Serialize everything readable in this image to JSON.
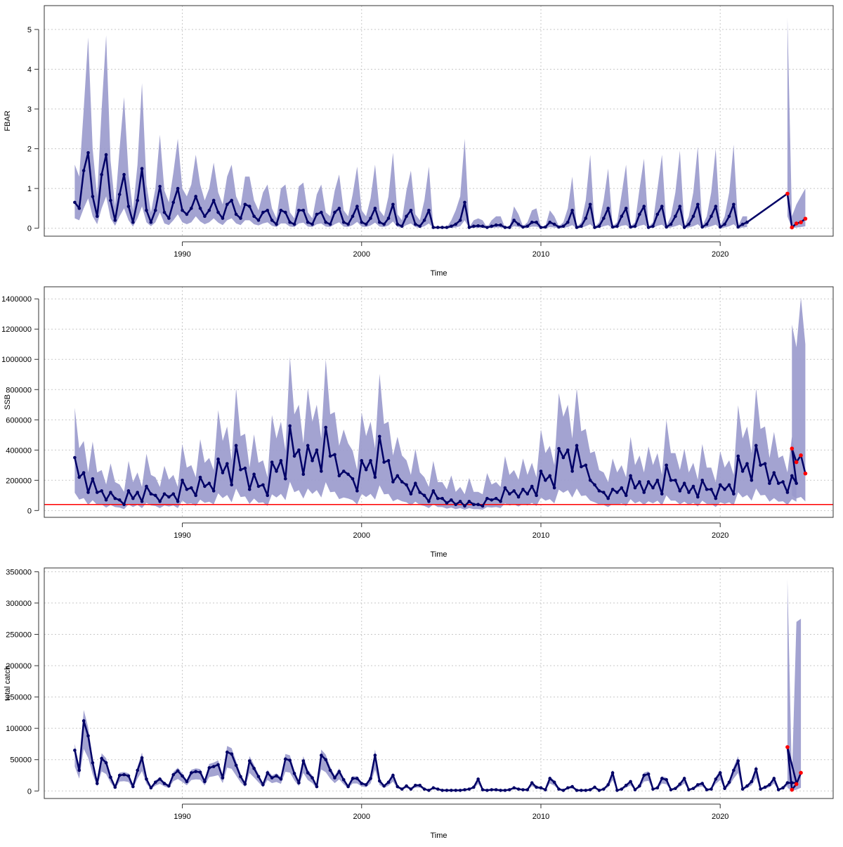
{
  "chart_data": [
    {
      "type": "line",
      "ylabel": "FBAR",
      "xlabel": "Time",
      "xlim": [
        1982.3,
        2026.3
      ],
      "ylim": [
        -0.2,
        5.6
      ],
      "x_ticks": [
        1990,
        2000,
        2010,
        2020
      ],
      "y_ticks": [
        0,
        1,
        2,
        3,
        4,
        5
      ],
      "grid": true,
      "colors": {
        "line": "#000066",
        "band": "#9999cc",
        "forecast_points": "#ff0000"
      },
      "series": [
        {
          "x_start": 1984.0,
          "x_step": 0.25,
          "values": [
            0.65,
            0.5,
            1.45,
            1.9,
            0.8,
            0.3,
            1.35,
            1.85,
            0.7,
            0.2,
            0.85,
            1.35,
            0.55,
            0.15,
            0.7,
            1.5,
            0.45,
            0.15,
            0.45,
            1.05,
            0.4,
            0.25,
            0.65,
            1.0,
            0.45,
            0.35,
            0.5,
            0.8,
            0.5,
            0.3,
            0.45,
            0.7,
            0.4,
            0.25,
            0.6,
            0.7,
            0.35,
            0.25,
            0.6,
            0.55,
            0.3,
            0.2,
            0.4,
            0.45,
            0.2,
            0.1,
            0.45,
            0.4,
            0.15,
            0.1,
            0.45,
            0.45,
            0.15,
            0.1,
            0.35,
            0.4,
            0.15,
            0.1,
            0.4,
            0.5,
            0.15,
            0.1,
            0.3,
            0.55,
            0.15,
            0.1,
            0.25,
            0.5,
            0.15,
            0.1,
            0.25,
            0.6,
            0.1,
            0.05,
            0.3,
            0.45,
            0.1,
            0.05,
            0.2,
            0.45,
            0.02,
            0.02,
            0.02,
            0.02,
            0.05,
            0.1,
            0.2,
            0.65,
            0.02,
            0.05,
            0.06,
            0.05,
            0.02,
            0.05,
            0.08,
            0.08,
            0.02,
            0.02,
            0.2,
            0.1,
            0.03,
            0.05,
            0.15,
            0.15,
            0.02,
            0.03,
            0.15,
            0.1,
            0.03,
            0.05,
            0.15,
            0.45,
            0.02,
            0.05,
            0.25,
            0.6,
            0.02,
            0.05,
            0.25,
            0.5,
            0.03,
            0.05,
            0.3,
            0.5,
            0.03,
            0.05,
            0.35,
            0.55,
            0.02,
            0.05,
            0.35,
            0.55,
            0.03,
            0.1,
            0.3,
            0.55,
            0.02,
            0.1,
            0.3,
            0.6,
            0.03,
            0.1,
            0.3,
            0.55,
            0.03,
            0.1,
            0.3,
            0.6,
            0.03,
            0.1,
            0.15
          ],
          "lower": [
            0.25,
            0.2,
            0.5,
            0.75,
            0.3,
            0.1,
            0.5,
            0.8,
            0.25,
            0.06,
            0.3,
            0.5,
            0.2,
            0.04,
            0.25,
            0.55,
            0.15,
            0.05,
            0.15,
            0.4,
            0.12,
            0.08,
            0.2,
            0.35,
            0.15,
            0.1,
            0.15,
            0.3,
            0.17,
            0.1,
            0.15,
            0.25,
            0.14,
            0.08,
            0.2,
            0.25,
            0.12,
            0.08,
            0.2,
            0.2,
            0.1,
            0.07,
            0.12,
            0.15,
            0.06,
            0.03,
            0.12,
            0.12,
            0.04,
            0.03,
            0.12,
            0.14,
            0.04,
            0.03,
            0.1,
            0.12,
            0.04,
            0.03,
            0.1,
            0.15,
            0.04,
            0.03,
            0.08,
            0.16,
            0.04,
            0.03,
            0.07,
            0.14,
            0.04,
            0.03,
            0.07,
            0.17,
            0.03,
            0.02,
            0.08,
            0.12,
            0.03,
            0.01,
            0.05,
            0.12,
            0.0,
            0.0,
            0.0,
            0.0,
            0.01,
            0.02,
            0.05,
            0.2,
            0.0,
            0.01,
            0.01,
            0.01,
            0.0,
            0.01,
            0.02,
            0.02,
            0.0,
            0.0,
            0.05,
            0.03,
            0.0,
            0.01,
            0.04,
            0.04,
            0.0,
            0.0,
            0.03,
            0.02,
            0.0,
            0.01,
            0.03,
            0.08,
            0.0,
            0.01,
            0.05,
            0.1,
            0.0,
            0.01,
            0.05,
            0.08,
            0.0,
            0.01,
            0.06,
            0.08,
            0.0,
            0.01,
            0.06,
            0.09,
            0.0,
            0.01,
            0.06,
            0.09,
            0.0,
            0.02,
            0.05,
            0.09,
            0.0,
            0.02,
            0.05,
            0.1,
            0.0,
            0.02,
            0.05,
            0.09,
            0.0,
            0.02,
            0.05,
            0.1,
            0.0,
            0.02,
            0.03
          ],
          "upper": [
            1.6,
            1.3,
            3.0,
            4.8,
            2.0,
            0.8,
            3.0,
            4.85,
            1.7,
            0.55,
            2.0,
            3.3,
            1.35,
            0.45,
            1.6,
            3.65,
            1.1,
            0.4,
            1.0,
            2.35,
            0.95,
            0.65,
            1.4,
            2.25,
            1.0,
            0.8,
            1.1,
            1.85,
            1.1,
            0.7,
            1.0,
            1.65,
            0.9,
            0.6,
            1.3,
            1.6,
            0.8,
            0.55,
            1.3,
            1.3,
            0.7,
            0.45,
            0.9,
            1.1,
            0.5,
            0.25,
            1.0,
            1.1,
            0.4,
            0.25,
            1.05,
            1.15,
            0.4,
            0.25,
            0.85,
            1.1,
            0.4,
            0.3,
            0.95,
            1.35,
            0.45,
            0.3,
            0.85,
            1.55,
            0.45,
            0.3,
            0.75,
            1.6,
            0.45,
            0.3,
            0.8,
            1.9,
            0.35,
            0.2,
            0.95,
            1.45,
            0.35,
            0.2,
            0.7,
            1.55,
            0.02,
            0.02,
            0.02,
            0.02,
            0.2,
            0.45,
            0.8,
            2.25,
            0.02,
            0.2,
            0.25,
            0.2,
            0.02,
            0.2,
            0.3,
            0.3,
            0.02,
            0.02,
            0.55,
            0.35,
            0.05,
            0.15,
            0.45,
            0.5,
            0.03,
            0.05,
            0.45,
            0.3,
            0.05,
            0.15,
            0.5,
            1.3,
            0.03,
            0.15,
            0.7,
            1.85,
            0.03,
            0.15,
            0.7,
            1.5,
            0.05,
            0.15,
            0.85,
            1.6,
            0.05,
            0.15,
            1.0,
            1.75,
            0.03,
            0.15,
            1.0,
            1.85,
            0.05,
            0.3,
            0.9,
            1.95,
            0.03,
            0.3,
            0.9,
            2.05,
            0.05,
            0.3,
            0.9,
            2.0,
            0.05,
            0.3,
            0.9,
            2.1,
            0.05,
            0.3,
            0.3
          ]
        },
        {
          "x_start": 1984.0,
          "x_step": 0.25,
          "values_note": "",
          "values": []
        }
      ]
    },
    {
      "type": "line",
      "ylabel": "SSB",
      "xlabel": "Time",
      "xlim": [
        1982.3,
        2026.3
      ],
      "ylim": [
        -45000,
        1480000
      ],
      "x_ticks": [
        1990,
        2000,
        2010,
        2020
      ],
      "y_ticks": [
        0,
        200000,
        400000,
        600000,
        800000,
        1000000,
        1200000,
        1400000
      ],
      "grid": true,
      "reference_line": 40000,
      "colors": {
        "line": "#000066",
        "band": "#9999cc",
        "forecast_points": "#ff0000",
        "reference": "#ff0000"
      },
      "series": []
    },
    {
      "type": "line",
      "ylabel": "total catch",
      "xlabel": "Time",
      "xlim": [
        1982.3,
        2026.3
      ],
      "ylim": [
        -12000,
        356000
      ],
      "x_ticks": [
        1990,
        2000,
        2010,
        2020
      ],
      "y_ticks": [
        0,
        50000,
        100000,
        150000,
        200000,
        250000,
        300000,
        350000
      ],
      "grid": true,
      "colors": {
        "line": "#000066",
        "band": "#9999cc",
        "forecast_points": "#ff0000"
      },
      "series": []
    }
  ],
  "tick_labels": {
    "x": [
      "1990",
      "2000",
      "2010",
      "2020"
    ],
    "fbar_y": [
      "0",
      "1",
      "2",
      "3",
      "4",
      "5"
    ],
    "ssb_y": [
      "0",
      "200000",
      "400000",
      "600000",
      "800000",
      "1000000",
      "1200000",
      "1400000"
    ],
    "catch_y": [
      "0",
      "50000",
      "100000",
      "150000",
      "200000",
      "250000",
      "300000",
      "350000"
    ]
  }
}
